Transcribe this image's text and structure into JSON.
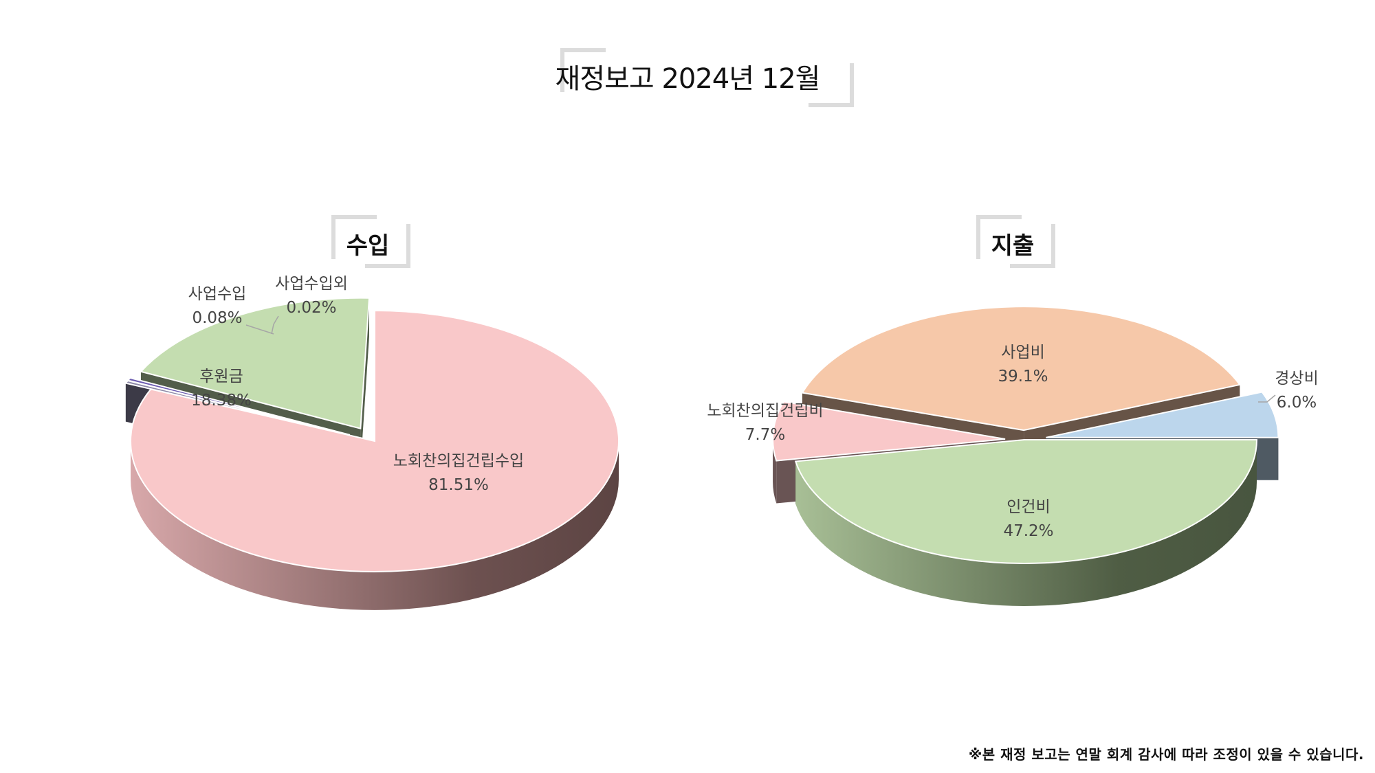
{
  "header": {
    "title": "재정보고 2024년 12월"
  },
  "footnote": "※본 재정 보고는 연말 회계 감사에 따라 조정이 있을 수 있습니다.",
  "chart_data": [
    {
      "type": "pie",
      "title": "수입",
      "slices": [
        {
          "label": "노회찬의집건립수입",
          "value": 81.51,
          "display": "81.51%",
          "color": "#f9c8c9"
        },
        {
          "label": "사업수입",
          "value": 0.08,
          "display": "0.08%",
          "color": "#8e8aa8"
        },
        {
          "label": "사업수입외",
          "value": 0.02,
          "display": "0.02%",
          "color": "#6b5bb0"
        },
        {
          "label": "후원금",
          "value": 18.38,
          "display": "18.38%",
          "color": "#c4ddb0"
        }
      ]
    },
    {
      "type": "pie",
      "title": "지출",
      "slices": [
        {
          "label": "인건비",
          "value": 47.2,
          "display": "47.2%",
          "color": "#c4ddb0"
        },
        {
          "label": "노회찬의집건립비",
          "value": 7.7,
          "display": "7.7%",
          "color": "#f9c8c9"
        },
        {
          "label": "사업비",
          "value": 39.1,
          "display": "39.1%",
          "color": "#f6c8a9"
        },
        {
          "label": "경상비",
          "value": 6.0,
          "display": "6.0%",
          "color": "#bcd6ec"
        }
      ]
    }
  ]
}
